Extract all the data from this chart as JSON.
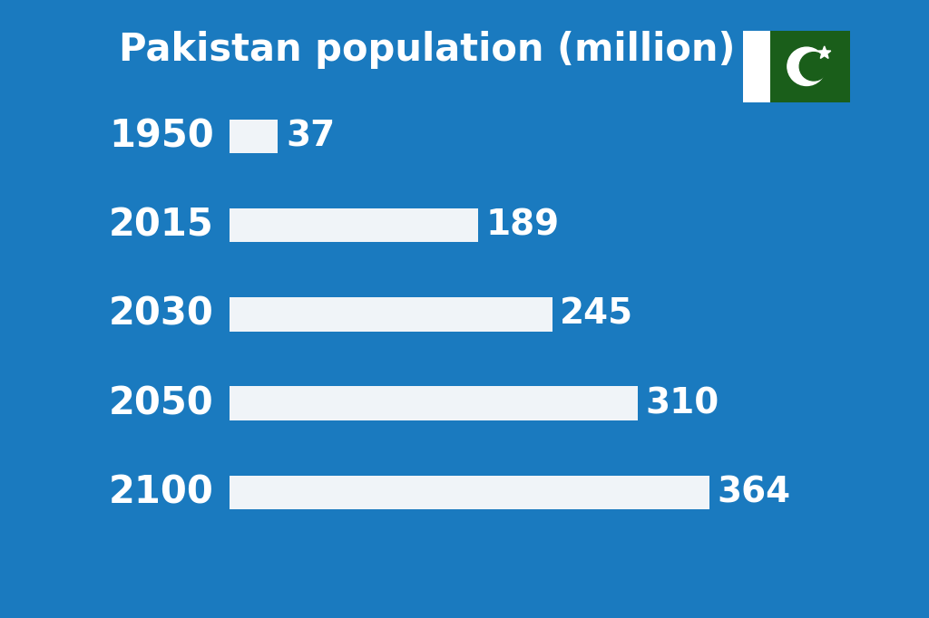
{
  "title": "Pakistan population (million)",
  "background_color": "#1a7abf",
  "bar_color": "#f0f4f8",
  "text_color": "#ffffff",
  "years": [
    "1950",
    "2015",
    "2030",
    "2050",
    "2100"
  ],
  "values": [
    37,
    189,
    245,
    310,
    364
  ],
  "max_value": 390,
  "title_fontsize": 30,
  "label_fontsize": 30,
  "value_fontsize": 28,
  "flag": {
    "white_color": "#ffffff",
    "green_color": "#1a5e1a"
  }
}
